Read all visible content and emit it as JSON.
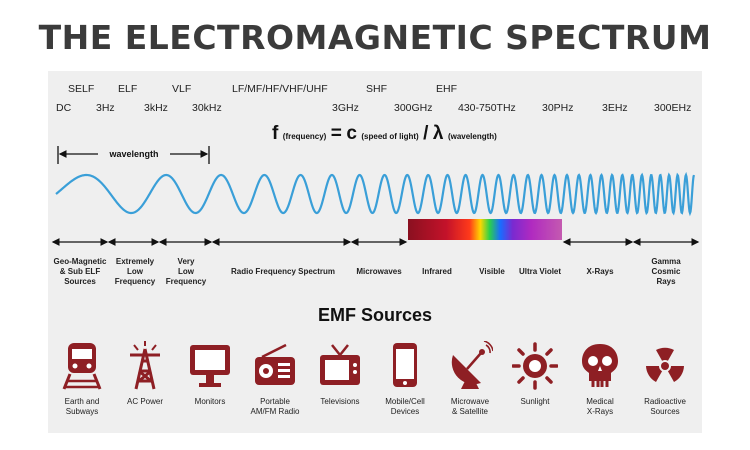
{
  "title": "THE ELECTROMAGNETIC SPECTRUM",
  "band_labels": [
    "SELF",
    "ELF",
    "VLF",
    "LF/MF/HF/VHF/UHF",
    "SHF",
    "EHF"
  ],
  "frequency_labels": [
    "DC",
    "3Hz",
    "3kHz",
    "30kHz",
    "3GHz",
    "300GHz",
    "430-750THz",
    "30PHz",
    "3EHz",
    "300EHz"
  ],
  "formula": {
    "f": "f",
    "f_note": "(frequency)",
    "eq": "=",
    "c": "c",
    "c_note": "(speed of light)",
    "slash": "/",
    "lambda": "λ",
    "lambda_note": "(wavelength)"
  },
  "wavelength_label": "wavelength",
  "regions": [
    "Geo-Magnetic\n& Sub ELF\nSources",
    "Extremely\nLow\nFrequency",
    "Very\nLow\nFrequency",
    "Radio Frequency Spectrum",
    "Microwaves",
    "Infrared",
    "Visible",
    "Ultra Violet",
    "X-Rays",
    "Gamma\nCosmic\nRays"
  ],
  "emf_title": "EMF Sources",
  "sources": [
    {
      "label": "Earth and\nSubways",
      "icon": "train-icon"
    },
    {
      "label": "AC Power",
      "icon": "power-tower-icon"
    },
    {
      "label": "Monitors",
      "icon": "monitor-icon"
    },
    {
      "label": "Portable\nAM/FM Radio",
      "icon": "radio-icon"
    },
    {
      "label": "Televisions",
      "icon": "television-icon"
    },
    {
      "label": "Mobile/Cell\nDevices",
      "icon": "mobile-phone-icon"
    },
    {
      "label": "Microwave\n& Satellite",
      "icon": "satellite-dish-icon"
    },
    {
      "label": "Sunlight",
      "icon": "sun-icon"
    },
    {
      "label": "Medical\nX-Rays",
      "icon": "skull-icon"
    },
    {
      "label": "Radioactive\nSources",
      "icon": "radioactive-icon"
    }
  ],
  "colors": {
    "icon": "#8e1f24",
    "wave": "#3a9fd8",
    "title": "#3b3b3b"
  }
}
